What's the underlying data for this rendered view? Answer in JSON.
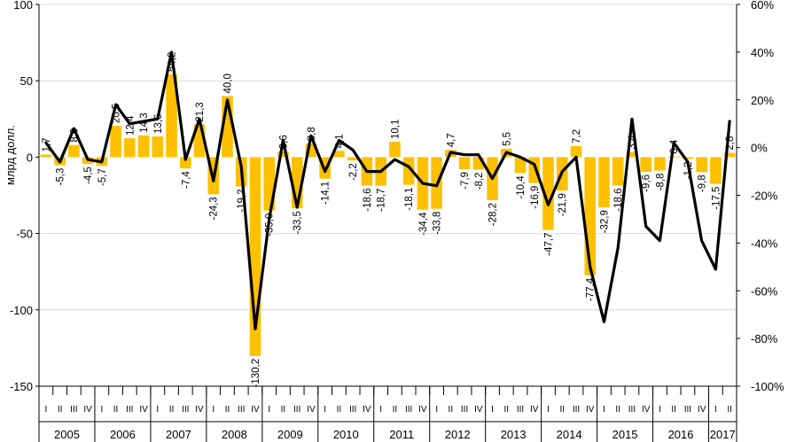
{
  "chart_data": {
    "type": "bar+line",
    "ylabel": "млрд долл.",
    "ylim": [
      -150,
      100
    ],
    "y_ticks": [
      "100",
      "50",
      "0",
      "-50",
      "-100",
      "-150"
    ],
    "y2lim": [
      -100,
      60
    ],
    "y2_ticks": [
      "60%",
      "40%",
      "20%",
      "0%",
      "-20%",
      "-40%",
      "-60%",
      "-80%",
      "-100%"
    ],
    "years": [
      "2005",
      "2006",
      "2007",
      "2008",
      "2009",
      "2010",
      "2011",
      "2012",
      "2013",
      "2014",
      "2015",
      "2016",
      "2017"
    ],
    "quarter_labels": [
      "I",
      "II",
      "III",
      "IV"
    ],
    "colors": {
      "bars": "#FFC000",
      "line": "#000000",
      "grid": "#D9D9D9"
    },
    "series": [
      {
        "kind": "bar",
        "values": [
          1.7,
          -5.3,
          8.0,
          -4.5,
          -5.7,
          20.5,
          12.4,
          14.3,
          13.6,
          54.2,
          -7.4,
          21.3,
          -24.3,
          40.0,
          -19.2,
          -130.2,
          -35.0,
          3.6,
          -33.5,
          8.8,
          -14.1,
          4.1,
          -2.2,
          -18.6,
          -18.7,
          10.1,
          -18.1,
          -34.4,
          -33.8,
          4.7,
          -7.9,
          -8.2,
          -28.2,
          5.5,
          -10.4,
          -16.9,
          -47.7,
          -21.9,
          7.2,
          -77.4,
          -32.9,
          -18.6,
          3.4,
          -9.6,
          -8.8,
          0.4,
          -1.2,
          -9.8,
          -17.5,
          2.8
        ],
        "labels": [
          "1,7",
          "-5,3",
          "8,0",
          "-4,5",
          "-5,7",
          "20,5",
          "12,4",
          "14,3",
          "13,6",
          "54,2",
          "-7,4",
          "21,3",
          "-24,3",
          "40,0",
          "-19,2",
          "-130,2",
          "-35,0",
          "3,6",
          "-33,5",
          "8,8",
          "-14,1",
          "4,1",
          "-2,2",
          "-18,6",
          "-18,7",
          "10,1",
          "-18,1",
          "-34,4",
          "-33,8",
          "4,7",
          "-7,9",
          "-8,2",
          "-28,2",
          "5,5",
          "-10,4",
          "-16,9",
          "-47,7",
          "-21,9",
          "7,2",
          "-77,4",
          "-32,9",
          "-18,6",
          "3,4",
          "-9,6",
          "-8,8",
          "0,4",
          "-1,2",
          "-9,8",
          "-17,5",
          "2,8"
        ]
      },
      {
        "kind": "line",
        "axis": "right",
        "unit": "%",
        "values": [
          2,
          -6,
          8,
          -5,
          -6,
          18,
          10,
          11,
          12,
          40,
          -5,
          12,
          -14,
          20,
          -8,
          -76,
          -30,
          3,
          -25,
          5,
          -10,
          3,
          -1,
          -10,
          -10,
          -5,
          -8,
          -15,
          -16,
          -2,
          -3,
          -3,
          -13,
          -2,
          -4,
          -7,
          -24,
          -10,
          -4,
          -50,
          -73,
          -42,
          12,
          -33,
          -39,
          2,
          -6,
          -39,
          -51,
          11
        ]
      }
    ]
  }
}
